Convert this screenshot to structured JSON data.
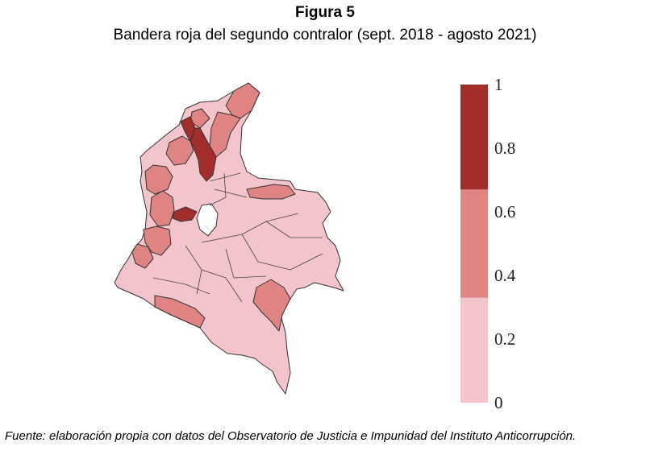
{
  "figure": {
    "label": "Figura 5",
    "title": "Bandera roja del segundo contralor (sept. 2018 - agosto 2021)"
  },
  "colors": {
    "level_0_low": "#f4c4cc",
    "level_1_mid": "#df8482",
    "level_2_high": "#a32d2a",
    "border": "#333333"
  },
  "map": {
    "regions": [
      {
        "id": "la-guajira",
        "level": 1
      },
      {
        "id": "atlantico",
        "level": 1
      },
      {
        "id": "magdalena",
        "level": 2
      },
      {
        "id": "bolivar",
        "level": 2
      },
      {
        "id": "cesar",
        "level": 1
      },
      {
        "id": "sucre",
        "level": 1
      },
      {
        "id": "cordoba",
        "level": 1
      },
      {
        "id": "antioquia",
        "level": 1
      },
      {
        "id": "arauca",
        "level": 1
      },
      {
        "id": "caldas",
        "level": 2
      },
      {
        "id": "choco",
        "level": 1
      },
      {
        "id": "valle-del-cauca",
        "level": 1
      },
      {
        "id": "putumayo",
        "level": 1
      },
      {
        "id": "guaviare",
        "level": 1
      },
      {
        "id": "other-departments",
        "level": 0
      }
    ]
  },
  "legend": {
    "ticks": [
      "1",
      "0.8",
      "0.6",
      "0.4",
      "0.2",
      "0"
    ],
    "bins": [
      {
        "from": 0,
        "to": 0.33,
        "color": "#f4c4cc"
      },
      {
        "from": 0.33,
        "to": 0.67,
        "color": "#df8482"
      },
      {
        "from": 0.67,
        "to": 1,
        "color": "#a32d2a"
      }
    ]
  },
  "source": "Fuente: elaboración propia con datos del Observatorio de Justicia e Impunidad del Instituto Anticorrupción."
}
